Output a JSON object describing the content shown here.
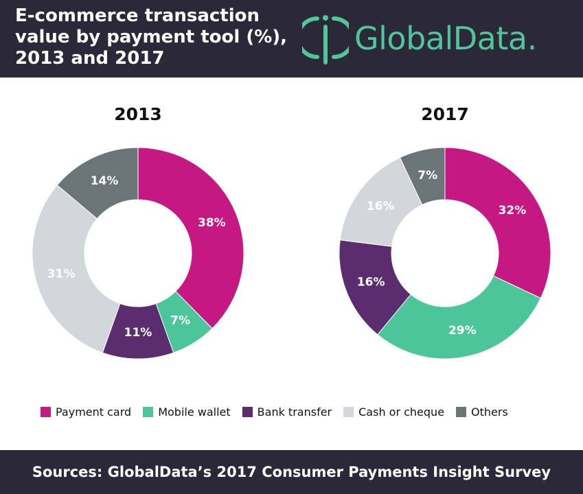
{
  "header": {
    "title": "E-commerce transaction\nvalue by payment tool (%),\n2013 and 2017",
    "logo_text": "GlobalData",
    "logo_dot": ".",
    "logo_icon": "globaldata-logo-icon"
  },
  "colors": {
    "background_band": "#2b2838",
    "brand": "#4fc79a",
    "payment_card": "#c51882",
    "mobile_wallet": "#4cc59a",
    "bank_transfer": "#5a2d6e",
    "cash_or_cheque": "#d3d6db",
    "others": "#6b7477"
  },
  "chart_data": [
    {
      "type": "pie",
      "subtype": "donut",
      "title": "2013",
      "categories": [
        "Payment card",
        "Mobile wallet",
        "Bank transfer",
        "Cash or cheque",
        "Others"
      ],
      "values": [
        38,
        7,
        11,
        31,
        14
      ],
      "labels": [
        "38%",
        "7%",
        "11%",
        "31%",
        "14%"
      ],
      "unit": "%"
    },
    {
      "type": "pie",
      "subtype": "donut",
      "title": "2017",
      "categories": [
        "Payment card",
        "Mobile wallet",
        "Bank transfer",
        "Cash or cheque",
        "Others"
      ],
      "values": [
        32,
        29,
        16,
        16,
        7
      ],
      "labels": [
        "32%",
        "29%",
        "16%",
        "16%",
        "7%"
      ],
      "unit": "%"
    }
  ],
  "legend": {
    "placement": "bottom",
    "items": [
      {
        "label": "Payment card",
        "color": "#c51882"
      },
      {
        "label": "Mobile wallet",
        "color": "#4cc59a"
      },
      {
        "label": "Bank transfer",
        "color": "#5a2d6e"
      },
      {
        "label": "Cash or cheque",
        "color": "#d3d6db"
      },
      {
        "label": "Others",
        "color": "#6b7477"
      }
    ]
  },
  "footer": {
    "source": "Sources: GlobalData’s 2017 Consumer Payments Insight Survey"
  }
}
